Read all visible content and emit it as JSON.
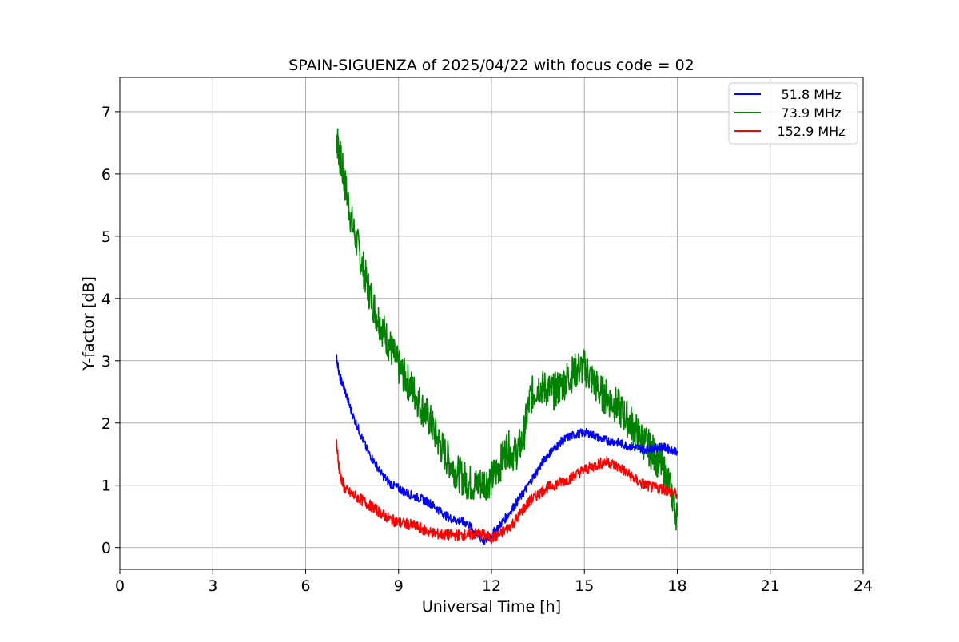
{
  "chart_data": {
    "type": "line",
    "title": "SPAIN-SIGUENZA of 2025/04/22 with focus code = 02",
    "xlabel": "Universal Time [h]",
    "ylabel": "Y-factor [dB]",
    "xlim": [
      0,
      24
    ],
    "ylim": [
      -0.35,
      7.55
    ],
    "xticks": [
      0,
      3,
      6,
      9,
      12,
      15,
      18,
      21,
      24
    ],
    "yticks": [
      0,
      1,
      2,
      3,
      4,
      5,
      6,
      7
    ],
    "grid": true,
    "legend_position": "top-right",
    "series": [
      {
        "name": "51.8 MHz",
        "color": "#0000ff",
        "x": [
          7.0,
          7.1,
          7.25,
          7.5,
          7.75,
          8.0,
          8.25,
          8.5,
          8.75,
          9.0,
          9.25,
          9.5,
          9.75,
          10.0,
          10.25,
          10.5,
          10.75,
          11.0,
          11.25,
          11.5,
          11.75,
          12.0,
          12.25,
          12.5,
          12.75,
          13.0,
          13.25,
          13.5,
          13.75,
          14.0,
          14.25,
          14.5,
          14.75,
          15.0,
          15.25,
          15.5,
          15.75,
          16.0,
          16.25,
          16.5,
          16.75,
          17.0,
          17.25,
          17.5,
          17.75,
          18.0
        ],
        "values": [
          3.05,
          2.75,
          2.55,
          2.15,
          1.85,
          1.55,
          1.35,
          1.15,
          1.02,
          0.95,
          0.88,
          0.82,
          0.78,
          0.72,
          0.62,
          0.52,
          0.45,
          0.42,
          0.38,
          0.22,
          0.1,
          0.2,
          0.35,
          0.5,
          0.68,
          0.85,
          1.05,
          1.25,
          1.45,
          1.58,
          1.7,
          1.78,
          1.82,
          1.85,
          1.82,
          1.75,
          1.72,
          1.7,
          1.66,
          1.62,
          1.6,
          1.58,
          1.6,
          1.62,
          1.58,
          1.55
        ]
      },
      {
        "name": "73.9 MHz",
        "color": "#008000",
        "x": [
          7.0,
          7.1,
          7.25,
          7.5,
          7.75,
          8.0,
          8.25,
          8.5,
          8.75,
          9.0,
          9.25,
          9.5,
          9.75,
          10.0,
          10.25,
          10.5,
          10.75,
          11.0,
          11.25,
          11.5,
          11.75,
          12.0,
          12.25,
          12.5,
          12.75,
          13.0,
          13.25,
          13.5,
          13.75,
          14.0,
          14.25,
          14.5,
          14.75,
          15.0,
          15.25,
          15.5,
          15.75,
          16.0,
          16.25,
          16.5,
          16.75,
          17.0,
          17.25,
          17.5,
          17.75,
          18.0
        ],
        "values": [
          6.6,
          6.3,
          5.9,
          5.2,
          4.7,
          4.2,
          3.8,
          3.5,
          3.2,
          2.9,
          2.7,
          2.5,
          2.25,
          2.05,
          1.75,
          1.5,
          1.3,
          1.15,
          1.05,
          1.0,
          1.05,
          1.1,
          1.3,
          1.6,
          1.5,
          1.7,
          2.4,
          2.6,
          2.55,
          2.5,
          2.6,
          2.75,
          2.85,
          2.9,
          2.7,
          2.5,
          2.4,
          2.3,
          2.15,
          2.0,
          1.8,
          1.65,
          1.5,
          1.3,
          1.0,
          0.5
        ]
      },
      {
        "name": "152.9 MHz",
        "color": "#ff0000",
        "x": [
          7.0,
          7.1,
          7.25,
          7.5,
          7.75,
          8.0,
          8.25,
          8.5,
          8.75,
          9.0,
          9.25,
          9.5,
          9.75,
          10.0,
          10.25,
          10.5,
          10.75,
          11.0,
          11.25,
          11.5,
          11.75,
          12.0,
          12.25,
          12.5,
          12.75,
          13.0,
          13.25,
          13.5,
          13.75,
          14.0,
          14.25,
          14.5,
          14.75,
          15.0,
          15.25,
          15.5,
          15.75,
          16.0,
          16.25,
          16.5,
          16.75,
          17.0,
          17.25,
          17.5,
          17.75,
          18.0
        ],
        "values": [
          1.65,
          1.2,
          0.95,
          0.85,
          0.78,
          0.7,
          0.62,
          0.52,
          0.45,
          0.4,
          0.38,
          0.35,
          0.3,
          0.25,
          0.22,
          0.2,
          0.2,
          0.2,
          0.2,
          0.22,
          0.2,
          0.15,
          0.2,
          0.3,
          0.42,
          0.6,
          0.75,
          0.85,
          0.95,
          1.0,
          1.05,
          1.1,
          1.18,
          1.25,
          1.3,
          1.35,
          1.38,
          1.32,
          1.25,
          1.15,
          1.05,
          1.0,
          0.95,
          0.95,
          0.9,
          0.85
        ]
      }
    ]
  }
}
